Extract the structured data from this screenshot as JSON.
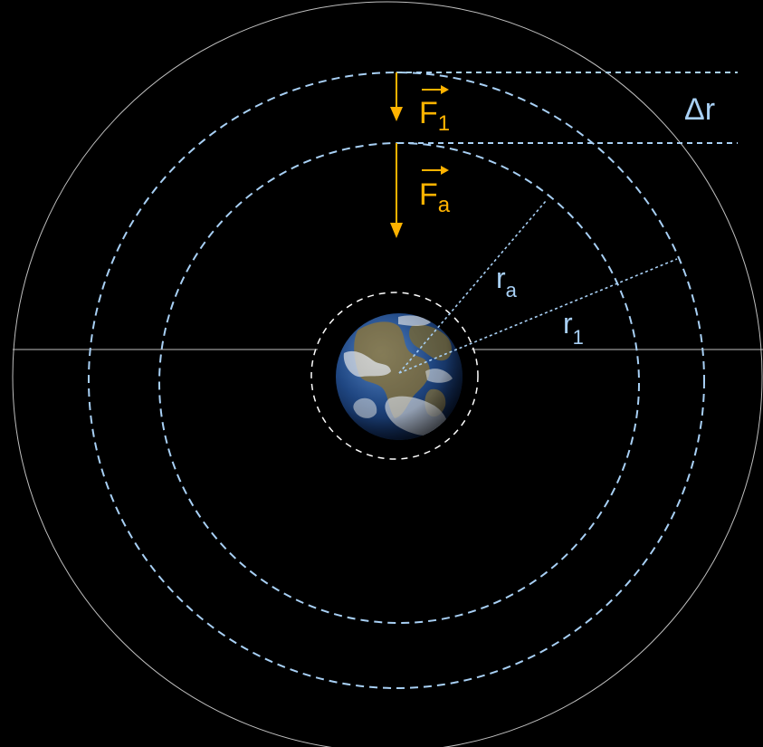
{
  "labels": {
    "force_1": {
      "base": "F",
      "sub": "1"
    },
    "force_a": {
      "base": "F",
      "sub": "a"
    },
    "radius_a": {
      "base": "r",
      "sub": "a"
    },
    "radius_1": {
      "base": "r",
      "sub": "1"
    },
    "delta_r": "Δr"
  },
  "colors": {
    "background": "#000000",
    "orbit_dashed": "#a8d0f5",
    "outer_circle": "#bfbfbf",
    "force_arrow": "#ffb300",
    "radius_label": "#a8d0f5",
    "earth_ocean": "#1f4f93",
    "earth_land": "#8a7a4a",
    "earth_cloud": "#e8eef5"
  },
  "icons": {
    "earth": "earth-globe-icon",
    "force_arrow": "arrow-down-icon",
    "vector_arrow": "arrow-right-icon"
  }
}
